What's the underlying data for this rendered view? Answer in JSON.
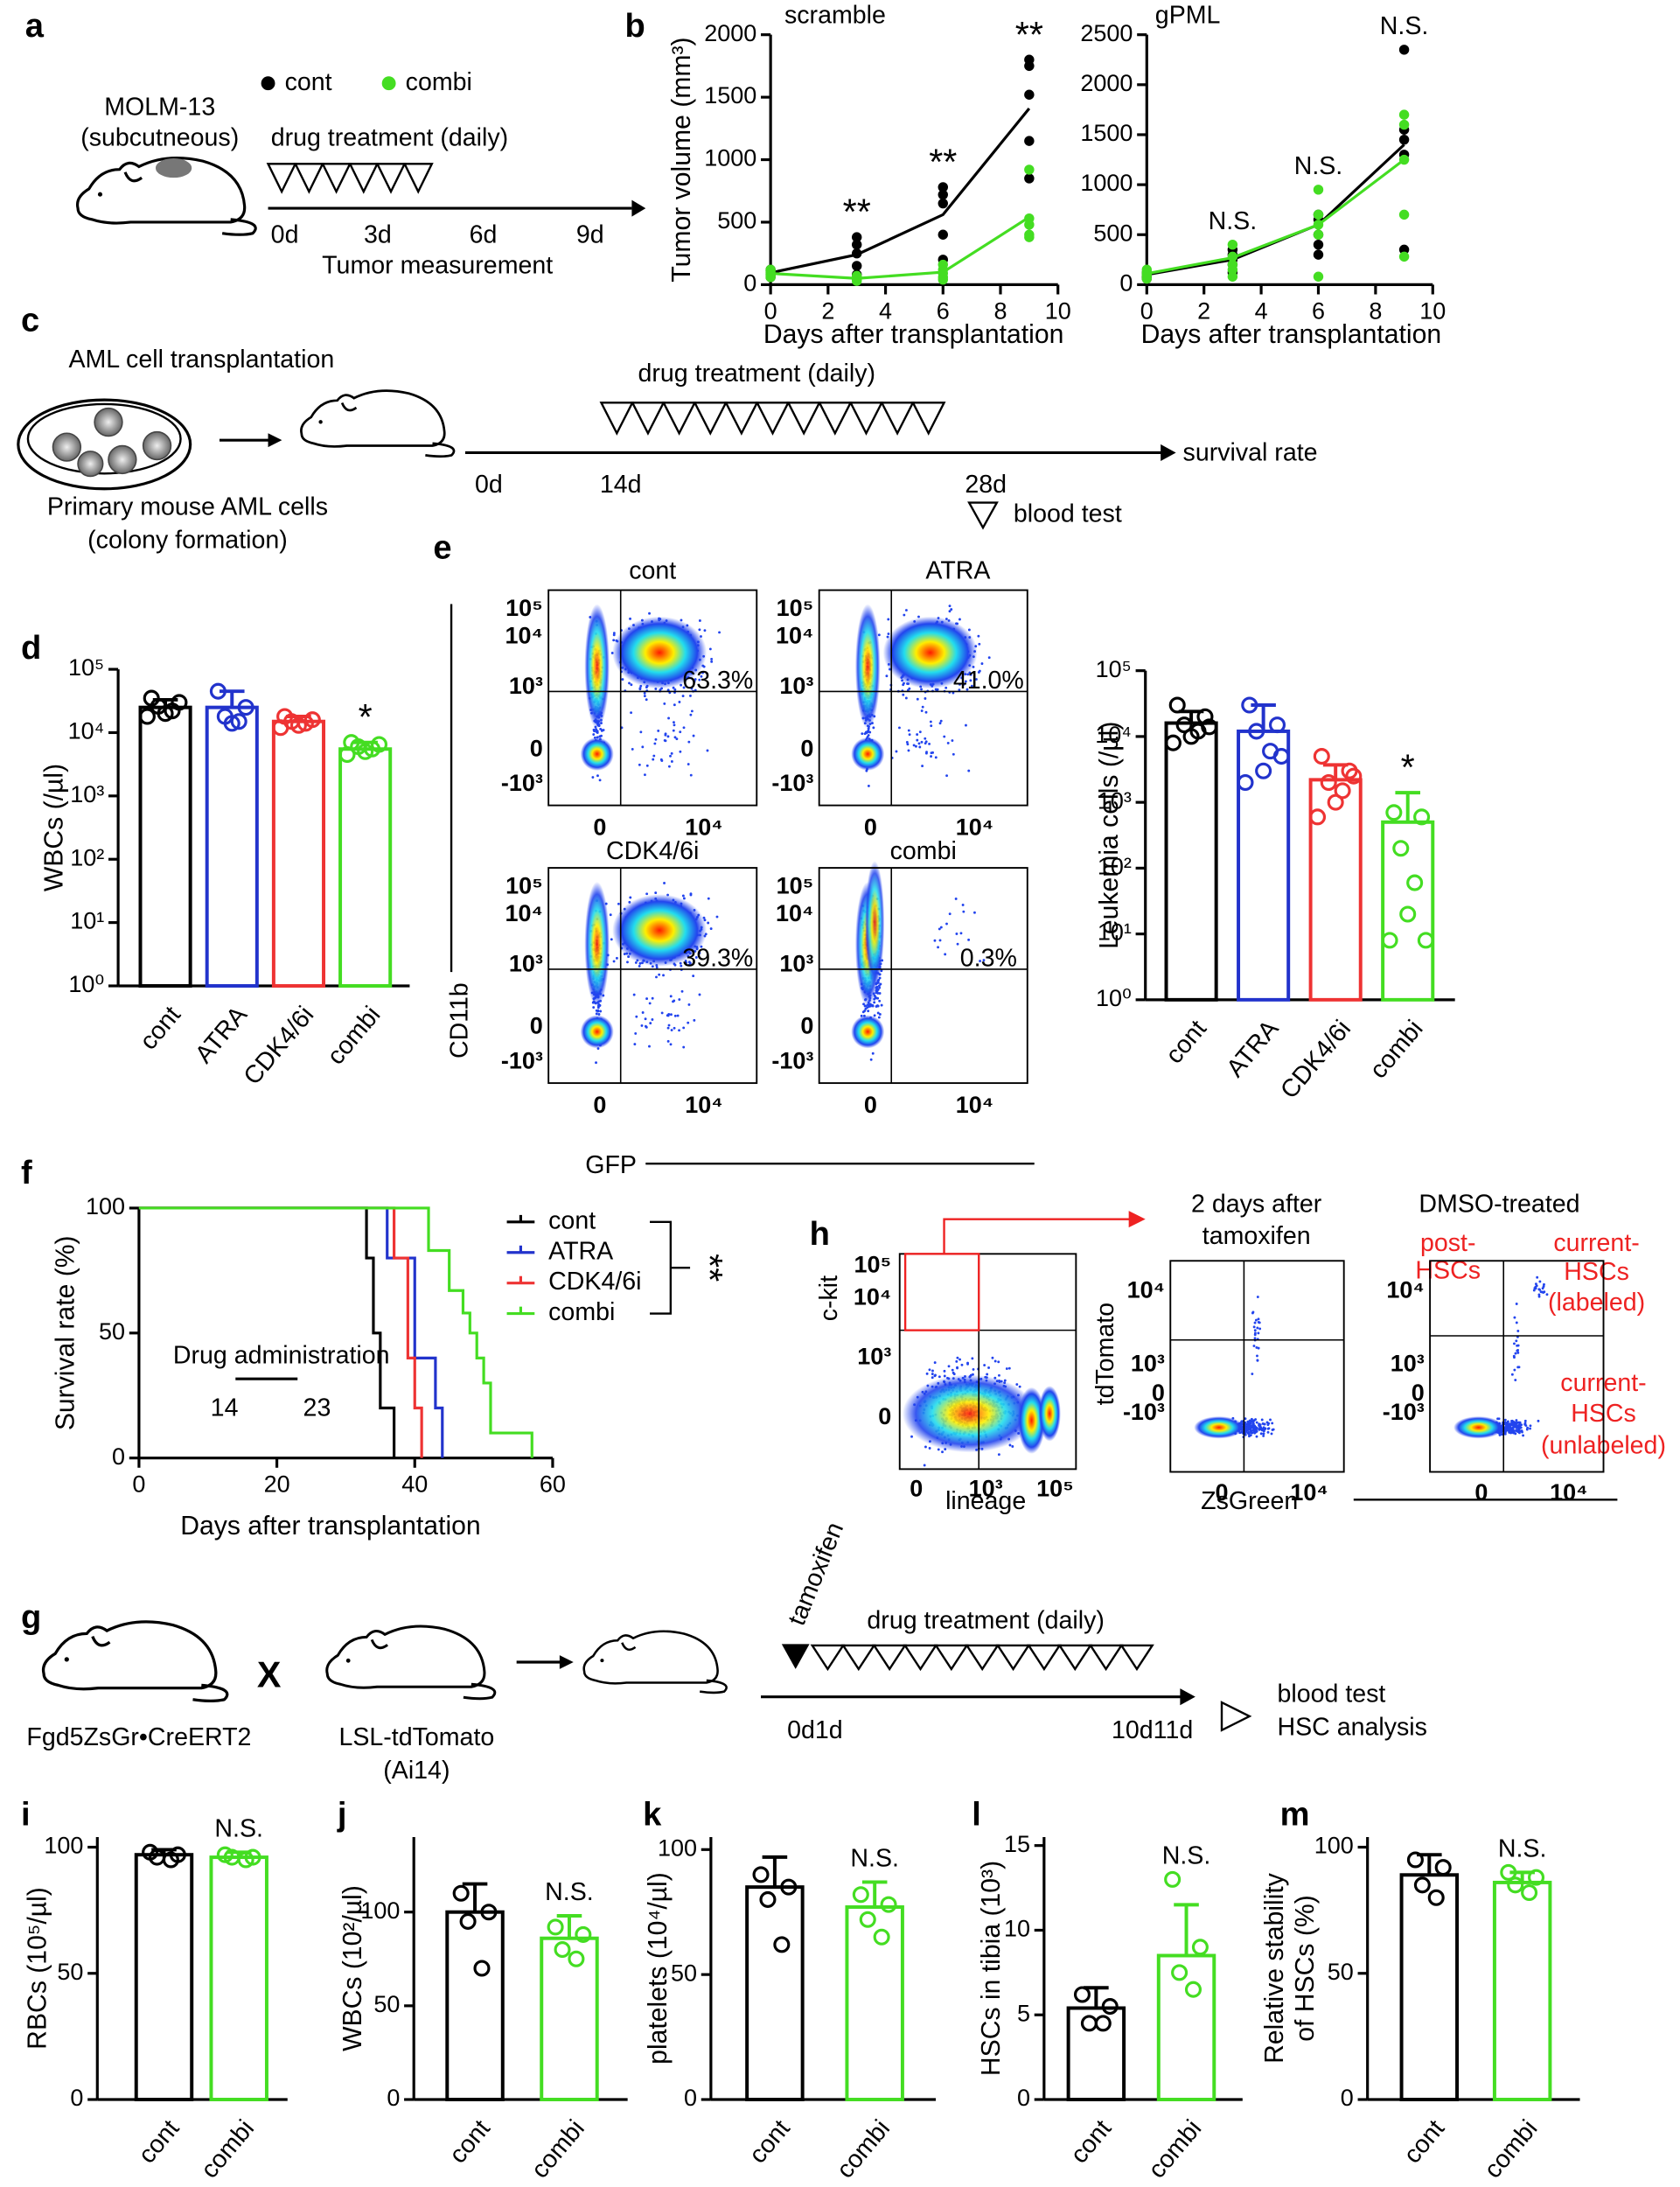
{
  "panel_labels": [
    "a",
    "b",
    "c",
    "d",
    "e",
    "f",
    "g",
    "h",
    "i",
    "j",
    "k",
    "l",
    "m"
  ],
  "panel_a": {
    "cell_line": "MOLM-13",
    "site": "(subcutneous)",
    "treatment": "drug treatment (daily)",
    "days": [
      "0d",
      "3d",
      "6d",
      "9d"
    ],
    "measurement": "Tumor measurement"
  },
  "panel_c": {
    "transplant": "AML cell transplantation",
    "cells": "Primary mouse AML cells",
    "cells_note": "(colony formation)",
    "treatment": "drug treatment (daily)",
    "days": [
      "0d",
      "14d",
      "28d"
    ],
    "outcome": "survival rate",
    "test": "blood test"
  },
  "panel_e": {
    "plots": [
      {
        "title": "cont",
        "percent": "63.3%"
      },
      {
        "title": "ATRA",
        "percent": "41.0%"
      },
      {
        "title": "CDK4/6i",
        "percent": "39.3%"
      },
      {
        "title": "combi",
        "percent": "0.3%"
      }
    ],
    "y_label": "CD11b",
    "x_label": "GFP",
    "y_ticks": [
      "10⁵",
      "10⁴",
      "10³",
      "0",
      "-10³"
    ],
    "x_ticks": [
      "0",
      "10⁴"
    ]
  },
  "panel_g": {
    "strain1": "Fgd5ZsGr•CreERT2",
    "cross": "X",
    "strain2": "LSL-tdTomato",
    "strain2_note": "(Ai14)",
    "tamoxifen": "tamoxifen",
    "treatment": "drug treatment (daily)",
    "start": "0d1d",
    "end": "10d11d",
    "tests": [
      "blood test",
      "HSC analysis"
    ]
  },
  "panel_h": {
    "gate_y_label": "c-kit",
    "gate_x_label": "lineage",
    "gate_y_ticks": [
      "10⁵",
      "10⁴",
      "10³",
      "0"
    ],
    "gate_x_ticks": [
      "0",
      "10³",
      "10⁵"
    ],
    "plot2_title": [
      "2 days after",
      "tamoxifen"
    ],
    "plot3_title": "DMSO-treated",
    "y_label": "tdTomato",
    "x_label": "ZsGreen",
    "y_ticks": [
      "10⁴",
      "10³",
      "0",
      "-10³"
    ],
    "x_ticks": [
      "0",
      "10⁴"
    ],
    "post": [
      "post-",
      "HSCs"
    ],
    "labeled": [
      "current-",
      "HSCs",
      "(labeled)"
    ],
    "unlabeled": [
      "current-",
      "HSCs",
      "(unlabeled)"
    ]
  },
  "chart_data": [
    {
      "type": "line",
      "title": "scramble",
      "x": [
        0,
        3,
        6,
        9
      ],
      "series": [
        {
          "name": "cont",
          "color": "#000000",
          "values": [
            95,
            240,
            560,
            1410
          ],
          "points": [
            [
              100,
              80,
              120,
              60,
              110
            ],
            [
              380,
              320,
              250,
              150,
              80
            ],
            [
              780,
              720,
              650,
              400,
              200
            ],
            [
              1800,
              1750,
              1520,
              1150,
              850
            ]
          ]
        },
        {
          "name": "combi",
          "color": "#44dd22",
          "values": [
            90,
            50,
            100,
            540
          ],
          "points": [
            [
              110,
              90,
              70,
              60,
              120
            ],
            [
              60,
              40,
              50,
              30,
              70
            ],
            [
              160,
              120,
              90,
              60,
              40
            ],
            [
              920,
              530,
              480,
              400,
              380
            ]
          ]
        }
      ],
      "annotations": [
        null,
        "**",
        "**",
        "**"
      ],
      "x_label": "Days after transplantation",
      "y_label": "Tumor volume (mm³)",
      "xlim": [
        0,
        10
      ],
      "xticks": [
        0,
        2,
        4,
        6,
        8,
        10
      ],
      "ylim": [
        0,
        2000
      ],
      "yticks": [
        0,
        500,
        1000,
        1500,
        2000
      ]
    },
    {
      "type": "line",
      "title": "gPML",
      "x": [
        0,
        3,
        6,
        9
      ],
      "series": [
        {
          "color": "#000000",
          "values": [
            100,
            250,
            600,
            1400
          ],
          "points": [
            [
              110,
              90,
              80,
              60,
              120
            ],
            [
              350,
              300,
              250,
              200,
              120
            ],
            [
              700,
              650,
              500,
              400,
              300
            ],
            [
              2350,
              1550,
              1450,
              1300,
              350
            ]
          ]
        },
        {
          "color": "#44dd22",
          "values": [
            110,
            270,
            600,
            1250
          ],
          "points": [
            [
              150,
              120,
              90,
              60,
              100
            ],
            [
              400,
              280,
              200,
              150,
              80
            ],
            [
              950,
              700,
              600,
              500,
              80
            ],
            [
              1700,
              1600,
              1250,
              700,
              280
            ]
          ]
        }
      ],
      "annotations": [
        null,
        "N.S.",
        "N.S.",
        "N.S."
      ],
      "x_label": "Days after transplantation",
      "xlim": [
        0,
        10
      ],
      "xticks": [
        0,
        2,
        4,
        6,
        8,
        10
      ],
      "ylim": [
        0,
        2500
      ],
      "yticks": [
        0,
        500,
        1000,
        1500,
        2000,
        2500
      ]
    },
    {
      "type": "bar",
      "log": true,
      "categories": [
        "cont",
        "ATRA",
        "CDK4/6i",
        "combi"
      ],
      "colors": [
        "#000000",
        "#2233cc",
        "#ee3333",
        "#44dd22"
      ],
      "values": [
        25000,
        25000,
        15000,
        5500
      ],
      "errors": [
        8000,
        20000,
        3000,
        1500
      ],
      "points": [
        [
          35000,
          30000,
          26000,
          22000,
          20000,
          18000
        ],
        [
          45000,
          25000,
          18000,
          15000,
          14000
        ],
        [
          18000,
          16000,
          15000,
          14000,
          13000,
          12000
        ],
        [
          7000,
          6500,
          6000,
          5500,
          5000,
          4500
        ]
      ],
      "annotations": [
        null,
        null,
        null,
        "*"
      ],
      "y_label": "WBCs (/µl)",
      "ylim": [
        1,
        100000
      ],
      "yticks": [
        {
          "value": 1,
          "label": "10⁰"
        },
        {
          "value": 10,
          "label": "10¹"
        },
        {
          "value": 100,
          "label": "10²"
        },
        {
          "value": 1000,
          "label": "10³"
        },
        {
          "value": 10000,
          "label": "10⁴"
        },
        {
          "value": 100000,
          "label": "10⁵"
        }
      ]
    },
    {
      "type": "bar",
      "log": true,
      "categories": [
        "cont",
        "ATRA",
        "CDK4/6i",
        "combi"
      ],
      "colors": [
        "#000000",
        "#2233cc",
        "#ee3333",
        "#44dd22"
      ],
      "values": [
        16000,
        12000,
        2200,
        500
      ],
      "errors": [
        8000,
        18000,
        1500,
        900
      ],
      "points": [
        [
          30000,
          20000,
          15000,
          12000,
          10000,
          8000,
          14000
        ],
        [
          30000,
          15000,
          12000,
          6000,
          3000,
          2000,
          5000
        ],
        [
          5000,
          3000,
          2000,
          1500,
          1000,
          600,
          2500
        ],
        [
          700,
          600,
          200,
          60,
          20,
          8,
          8
        ]
      ],
      "annotations": [
        null,
        null,
        null,
        "*"
      ],
      "y_label": "Leukemia cells (/µl)",
      "ylim": [
        1,
        100000
      ],
      "yticks": [
        {
          "value": 1,
          "label": "10⁰"
        },
        {
          "value": 10,
          "label": "10¹"
        },
        {
          "value": 100,
          "label": "10²"
        },
        {
          "value": 1000,
          "label": "10³"
        },
        {
          "value": 10000,
          "label": "10⁴"
        },
        {
          "value": 100000,
          "label": "10⁵"
        }
      ]
    },
    {
      "type": "step",
      "x_label": "Days after transplantation",
      "y_label": "Survival rate (%)",
      "xlim": [
        0,
        60
      ],
      "xticks": [
        0,
        20,
        40,
        60
      ],
      "ylim": [
        0,
        100
      ],
      "yticks": [
        0,
        50,
        100
      ],
      "series": [
        {
          "name": "cont",
          "color": "#000000",
          "x": [
            0,
            33,
            34,
            35,
            37
          ],
          "values": [
            100,
            80,
            50,
            20,
            0
          ]
        },
        {
          "name": "ATRA",
          "color": "#2233cc",
          "x": [
            0,
            36,
            40,
            43,
            44
          ],
          "values": [
            100,
            80,
            40,
            20,
            0
          ]
        },
        {
          "name": "CDK4/6i",
          "color": "#ee3333",
          "x": [
            0,
            37,
            39,
            40,
            41
          ],
          "values": [
            100,
            80,
            40,
            20,
            0
          ]
        },
        {
          "name": "combi",
          "color": "#44dd22",
          "x": [
            0,
            42,
            45,
            47,
            48,
            49,
            50,
            51,
            57
          ],
          "values": [
            100,
            83,
            67,
            58,
            50,
            40,
            30,
            10,
            0
          ]
        }
      ],
      "drug_period": {
        "label": "Drug administration",
        "start": 14,
        "end": 23
      },
      "significance": "**"
    },
    {
      "type": "bar",
      "categories": [
        "cont",
        "combi"
      ],
      "colors": [
        "#000000",
        "#44dd22"
      ],
      "values": [
        97,
        96
      ],
      "errors": [
        2,
        2
      ],
      "points": [
        [
          98,
          97,
          96,
          95
        ],
        [
          97,
          96,
          96,
          95
        ]
      ],
      "annotations": [
        null,
        "N.S."
      ],
      "y_label": "RBCs (10⁵/µl)",
      "ylim": [
        0,
        104
      ],
      "yticks": [
        0,
        50,
        100
      ]
    },
    {
      "type": "bar",
      "categories": [
        "cont",
        "combi"
      ],
      "colors": [
        "#000000",
        "#44dd22"
      ],
      "values": [
        100,
        86
      ],
      "errors": [
        15,
        12
      ],
      "points": [
        [
          110,
          100,
          95,
          70
        ],
        [
          92,
          88,
          80,
          75
        ]
      ],
      "annotations": [
        null,
        "N.S."
      ],
      "y_label": "WBCs (10²/µl)",
      "ylim": [
        0,
        140
      ],
      "yticks": [
        0,
        50,
        100
      ]
    },
    {
      "type": "bar",
      "categories": [
        "cont",
        "combi"
      ],
      "colors": [
        "#000000",
        "#44dd22"
      ],
      "values": [
        85,
        77
      ],
      "errors": [
        12,
        10
      ],
      "points": [
        [
          90,
          85,
          80,
          62
        ],
        [
          82,
          78,
          72,
          65
        ]
      ],
      "annotations": [
        null,
        "N.S."
      ],
      "y_label": "platelets (10⁴/µl)",
      "ylim": [
        0,
        105
      ],
      "yticks": [
        0,
        50,
        100
      ]
    },
    {
      "type": "bar",
      "categories": [
        "cont",
        "combi"
      ],
      "colors": [
        "#000000",
        "#44dd22"
      ],
      "values": [
        5.4,
        8.5
      ],
      "errors": [
        1.2,
        3
      ],
      "points": [
        [
          6.2,
          5.5,
          4.5,
          4.5
        ],
        [
          13,
          9,
          7.5,
          6.5
        ]
      ],
      "annotations": [
        null,
        "N.S."
      ],
      "y_label": "HSCs in tibia (10³)",
      "ylim": [
        0,
        15.5
      ],
      "yticks": [
        0,
        5,
        10,
        15
      ]
    },
    {
      "type": "bar",
      "categories": [
        "cont",
        "combi"
      ],
      "colors": [
        "#000000",
        "#44dd22"
      ],
      "values": [
        89,
        86
      ],
      "errors": [
        8,
        4
      ],
      "points": [
        [
          95,
          92,
          85,
          80
        ],
        [
          90,
          88,
          85,
          82
        ]
      ],
      "annotations": [
        null,
        "N.S."
      ],
      "y_label": [
        "Relative stability",
        "of HSCs (%)"
      ],
      "ylim": [
        0,
        104
      ],
      "yticks": [
        0,
        50,
        100
      ]
    }
  ]
}
